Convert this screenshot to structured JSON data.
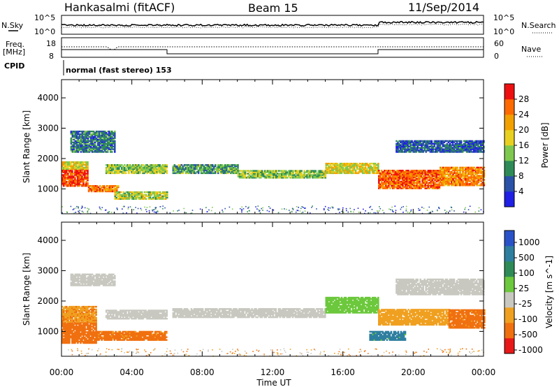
{
  "header": {
    "title": "Hankasalmi (fitACF)",
    "beam": "Beam 15",
    "date": "11/Sep/2014"
  },
  "noise_panel": {
    "left_label": "N.Sky",
    "left_ticks": [
      "10^5",
      "10^0"
    ],
    "right_label": "N.Search",
    "right_ticks": [
      "10^5",
      "10^0"
    ]
  },
  "freq_panel": {
    "left_label_1": "Freq.",
    "left_label_2": "[MHz]",
    "left_ticks": [
      "18",
      "8"
    ],
    "right_label": "Nave",
    "right_ticks": [
      "60",
      "0"
    ]
  },
  "cpid_panel": {
    "label": "CPID",
    "text": "normal (fast stereo) 153"
  },
  "axes": {
    "ylabel": "Slant Range [km]",
    "xlabel": "Time UT",
    "x_ticks": [
      "00:00",
      "04:00",
      "08:00",
      "12:00",
      "16:00",
      "20:00",
      "00:00"
    ],
    "y_ticks": [
      "1000",
      "2000",
      "3000",
      "4000"
    ]
  },
  "power_colorbar": {
    "label": "Power [dB]",
    "ticks": [
      "4",
      "8",
      "12",
      "16",
      "20",
      "24",
      "28"
    ],
    "colors": [
      "#1f1fe6",
      "#2a52a8",
      "#2e8b57",
      "#7ec850",
      "#e8d020",
      "#f2a000",
      "#ff6a00",
      "#ee1010"
    ]
  },
  "velocity_colorbar": {
    "label": "Velocity [m s^-1]",
    "ticks": [
      "1000",
      "500",
      "100",
      "25",
      "-25",
      "-100",
      "-500",
      "-1000"
    ],
    "colors": [
      "#2a52c8",
      "#2e7ea0",
      "#2e8b57",
      "#6cc83c",
      "#c8c8c0",
      "#f0a020",
      "#f07010",
      "#e81818"
    ]
  },
  "chart_data": {
    "type": "heatmap",
    "title": "Hankasalmi (fitACF)",
    "xlabel": "Time UT",
    "ylabel": "Slant Range [km]",
    "xlim": [
      0,
      24
    ],
    "ylim": [
      180,
      4600
    ],
    "power_bands": [
      {
        "t0": 0.0,
        "t1": 1.5,
        "r0": 1080,
        "r1": 1640,
        "level": 0.88
      },
      {
        "t0": 0.0,
        "t1": 1.5,
        "r0": 1640,
        "r1": 1900,
        "level": 0.55
      },
      {
        "t0": 1.5,
        "t1": 3.2,
        "r0": 900,
        "r1": 1100,
        "level": 0.78
      },
      {
        "t0": 0.5,
        "t1": 3.0,
        "r0": 2200,
        "r1": 2900,
        "level": 0.25
      },
      {
        "t0": 2.5,
        "t1": 6.0,
        "r0": 1500,
        "r1": 1800,
        "level": 0.45
      },
      {
        "t0": 3.0,
        "t1": 6.0,
        "r0": 650,
        "r1": 900,
        "level": 0.5
      },
      {
        "t0": 6.3,
        "t1": 10.0,
        "r0": 1500,
        "r1": 1800,
        "level": 0.35
      },
      {
        "t0": 10.0,
        "t1": 15.0,
        "r0": 1350,
        "r1": 1600,
        "level": 0.45
      },
      {
        "t0": 15.0,
        "t1": 18.0,
        "r0": 1500,
        "r1": 1850,
        "level": 0.55
      },
      {
        "t0": 18.0,
        "t1": 21.5,
        "r0": 1000,
        "r1": 1600,
        "level": 0.82
      },
      {
        "t0": 21.5,
        "t1": 24.0,
        "r0": 1100,
        "r1": 1700,
        "level": 0.75
      },
      {
        "t0": 19.0,
        "t1": 24.0,
        "r0": 2200,
        "r1": 2600,
        "level": 0.2
      }
    ],
    "velocity_bands": [
      {
        "t0": 0.0,
        "t1": 2.0,
        "r0": 600,
        "r1": 1300,
        "v": -200
      },
      {
        "t0": 0.0,
        "t1": 2.0,
        "r0": 1300,
        "r1": 1800,
        "v": -80
      },
      {
        "t0": 2.0,
        "t1": 6.0,
        "r0": 700,
        "r1": 1000,
        "v": -150
      },
      {
        "t0": 0.5,
        "t1": 3.0,
        "r0": 2500,
        "r1": 2900,
        "v": 0
      },
      {
        "t0": 2.5,
        "t1": 6.0,
        "r0": 1400,
        "r1": 1700,
        "v": 0
      },
      {
        "t0": 6.3,
        "t1": 15.0,
        "r0": 1450,
        "r1": 1750,
        "v": 0
      },
      {
        "t0": 15.0,
        "t1": 18.0,
        "r0": 1600,
        "r1": 2100,
        "v": 60
      },
      {
        "t0": 17.5,
        "t1": 19.5,
        "r0": 700,
        "r1": 1000,
        "v": 150
      },
      {
        "t0": 18.0,
        "t1": 22.0,
        "r0": 1200,
        "r1": 1700,
        "v": -60
      },
      {
        "t0": 22.0,
        "t1": 24.0,
        "r0": 1100,
        "r1": 1700,
        "v": -150
      },
      {
        "t0": 19.0,
        "t1": 24.0,
        "r0": 2200,
        "r1": 2700,
        "v": 0
      }
    ]
  }
}
